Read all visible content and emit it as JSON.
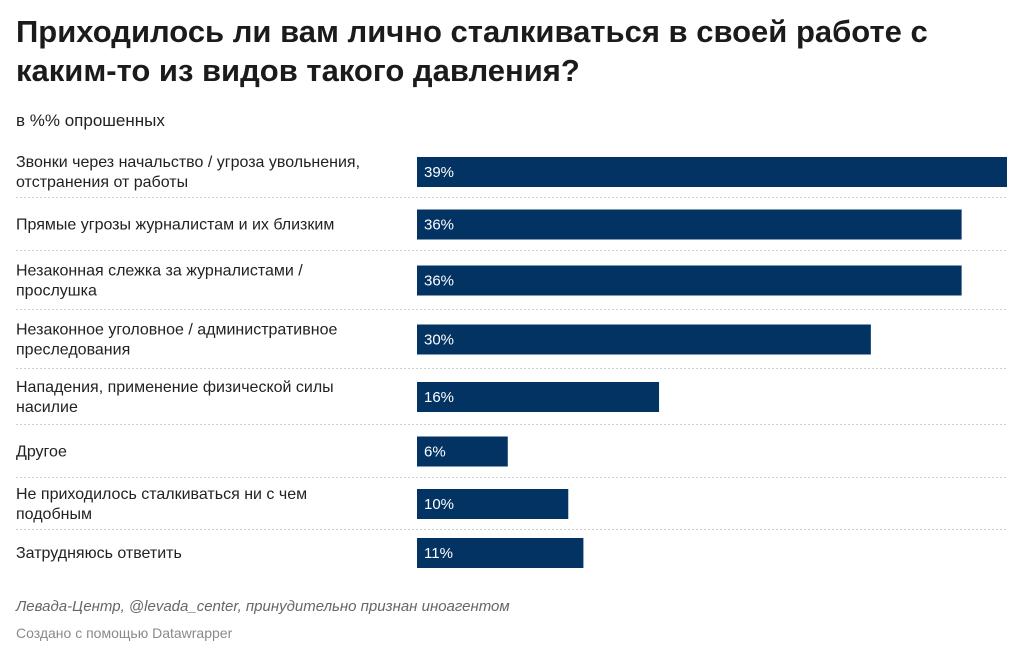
{
  "header": {
    "title": "Приходилось ли вам лично сталкиваться в своей работе с каким-то из видов такого давления?",
    "subtitle": "в %% опрошенных"
  },
  "footer": {
    "source": "Левада-Центр, @levada_center, принудительно признан иноагентом",
    "credit": "Создано с помощью Datawrapper"
  },
  "colors": {
    "bar": "#023363",
    "value_text": "#ffffff",
    "grid": "#cfcfcf"
  },
  "chart_data": {
    "type": "bar",
    "orientation": "horizontal",
    "categories": [
      [
        "Звонки через начальство / угроза увольнения,",
        "отстранения от работы"
      ],
      [
        "Прямые угрозы журналистам и их близким"
      ],
      [
        "Незаконная слежка за журналистами /",
        "прослушка"
      ],
      [
        "Незаконное уголовное / административное",
        "преследования"
      ],
      [
        "Нападения, применение физической силы",
        "насилие"
      ],
      [
        "Другое"
      ],
      [
        "Не приходилось сталкиваться ни с чем",
        "подобным"
      ],
      [
        "Затрудняюсь ответить"
      ]
    ],
    "values": [
      39,
      36,
      36,
      30,
      16,
      6,
      10,
      11
    ],
    "value_labels": [
      "39%",
      "36%",
      "36%",
      "30%",
      "16%",
      "6%",
      "10%",
      "11%"
    ],
    "xlim": [
      0,
      39
    ],
    "grid": false
  }
}
